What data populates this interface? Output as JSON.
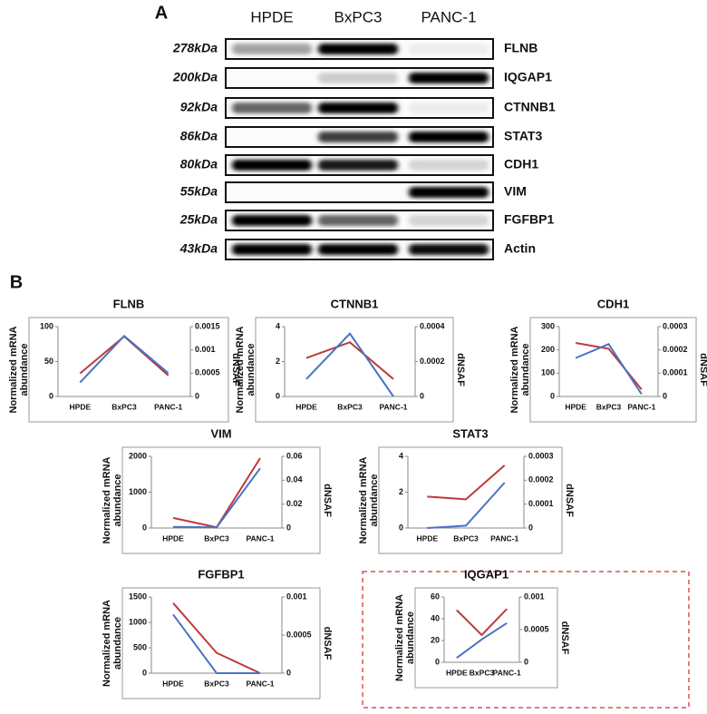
{
  "panel_a": {
    "label": "A",
    "lanes": [
      "HPDE",
      "BxPC3",
      "PANC-1"
    ],
    "rows": [
      {
        "size": "278kDa",
        "protein": "FLNB"
      },
      {
        "size": "200kDa",
        "protein": "IQGAP1"
      },
      {
        "size": "92kDa",
        "protein": "CTNNB1"
      },
      {
        "size": "86kDa",
        "protein": "STAT3"
      },
      {
        "size": "80kDa",
        "protein": "CDH1"
      },
      {
        "size": "55kDa",
        "protein": "VIM"
      },
      {
        "size": "25kDa",
        "protein": "FGFBP1"
      },
      {
        "size": "43kDa",
        "protein": "Actin"
      }
    ]
  },
  "panel_b": {
    "label": "B"
  },
  "chart_data": [
    {
      "type": "line",
      "title": "FLNB",
      "y_label": [
        "Normalized mRNA",
        "abundance"
      ],
      "y2_label": "dNSAF",
      "categories": [
        "HPDE",
        "BxPC3",
        "PANC-1"
      ],
      "ylim": [
        0,
        100
      ],
      "yticks": [
        0,
        50,
        100
      ],
      "y2lim": [
        0,
        0.0015
      ],
      "y2ticks": [
        0,
        0.0005,
        0.001,
        0.0015
      ],
      "series": [
        {
          "color": "#c0393b",
          "values": [
            33,
            86,
            30
          ]
        },
        {
          "color": "#4a72c4",
          "axis": "y2",
          "values": [
            0.0003,
            0.0013,
            0.0005
          ]
        }
      ]
    },
    {
      "type": "line",
      "title": "CTNNB1",
      "y_label": [
        "Normalized mRNA",
        "abundance"
      ],
      "y2_label": "dNSAF",
      "categories": [
        "HPDE",
        "BxPC3",
        "PANC-1"
      ],
      "ylim": [
        0,
        4
      ],
      "yticks": [
        0,
        2,
        4
      ],
      "y2lim": [
        0,
        0.0004
      ],
      "y2ticks": [
        0,
        0.0002,
        0.0004
      ],
      "series": [
        {
          "color": "#c0393b",
          "values": [
            2.2,
            3.1,
            1.0
          ]
        },
        {
          "color": "#4a72c4",
          "axis": "y2",
          "values": [
            0.0001,
            0.00036,
            0
          ]
        }
      ]
    },
    {
      "type": "line",
      "title": "CDH1",
      "y_label": [
        "Normalized mRNA",
        "abundance"
      ],
      "y2_label": "dNSAF",
      "categories": [
        "HPDE",
        "BxPC3",
        "PANC-1"
      ],
      "ylim": [
        0,
        300
      ],
      "yticks": [
        0,
        100,
        200,
        300
      ],
      "y2lim": [
        0,
        0.0003
      ],
      "y2ticks": [
        0,
        0.0001,
        0.0002,
        0.0003
      ],
      "series": [
        {
          "color": "#c0393b",
          "values": [
            230,
            205,
            30
          ]
        },
        {
          "color": "#4a72c4",
          "axis": "y2",
          "values": [
            0.000165,
            0.000225,
            1e-05
          ]
        }
      ]
    },
    {
      "type": "line",
      "title": "VIM",
      "y_label": [
        "Normalized mRNA",
        "abundance"
      ],
      "y2_label": "dNSAF",
      "categories": [
        "HPDE",
        "BxPC3",
        "PANC-1"
      ],
      "ylim": [
        0,
        2000
      ],
      "yticks": [
        0,
        1000,
        2000
      ],
      "y2lim": [
        0,
        0.06
      ],
      "y2ticks": [
        0,
        0.02,
        0.04,
        0.06
      ],
      "series": [
        {
          "color": "#c0393b",
          "values": [
            280,
            20,
            1950
          ]
        },
        {
          "color": "#4a72c4",
          "axis": "y2",
          "values": [
            0.001,
            0.0005,
            0.05
          ]
        }
      ]
    },
    {
      "type": "line",
      "title": "STAT3",
      "y_label": [
        "Normalized mRNA",
        "abundance"
      ],
      "y2_label": "dNSAF",
      "categories": [
        "HPDE",
        "BxPC3",
        "PANC-1"
      ],
      "ylim": [
        0,
        4
      ],
      "yticks": [
        0,
        2,
        4
      ],
      "y2lim": [
        0,
        0.0003
      ],
      "y2ticks": [
        0,
        0.0001,
        0.0002,
        0.0003
      ],
      "series": [
        {
          "color": "#c0393b",
          "values": [
            1.75,
            1.6,
            3.5
          ]
        },
        {
          "color": "#4a72c4",
          "axis": "y2",
          "values": [
            0,
            1e-05,
            0.00019
          ]
        }
      ]
    },
    {
      "type": "line",
      "title": "FGFBP1",
      "y_label": [
        "Normalized mRNA",
        "abundance"
      ],
      "y2_label": "dNSAF",
      "categories": [
        "HPDE",
        "BxPC3",
        "PANC-1"
      ],
      "ylim": [
        0,
        1500
      ],
      "yticks": [
        0,
        500,
        1000,
        1500
      ],
      "y2lim": [
        0,
        0.001
      ],
      "y2ticks": [
        0,
        0.0005,
        0.001
      ],
      "series": [
        {
          "color": "#c0393b",
          "values": [
            1380,
            400,
            0
          ]
        },
        {
          "color": "#4a72c4",
          "axis": "y2",
          "values": [
            0.00077,
            0,
            0
          ]
        }
      ]
    },
    {
      "type": "line",
      "title": "IQGAP1",
      "y_label": [
        "Normalized mRNA",
        "abundance"
      ],
      "y2_label": "dNSAF",
      "categories": [
        "HPDE",
        "BxPC3",
        "PANC-1"
      ],
      "ylim": [
        0,
        60
      ],
      "yticks": [
        0,
        20,
        40,
        60
      ],
      "y2lim": [
        0,
        0.001
      ],
      "y2ticks": [
        0,
        0.0005,
        0.001
      ],
      "series": [
        {
          "color": "#c0393b",
          "values": [
            48,
            25,
            49
          ]
        },
        {
          "color": "#4a72c4",
          "axis": "y2",
          "values": [
            6.7e-05,
            0.00035,
            0.0006
          ]
        }
      ]
    }
  ]
}
